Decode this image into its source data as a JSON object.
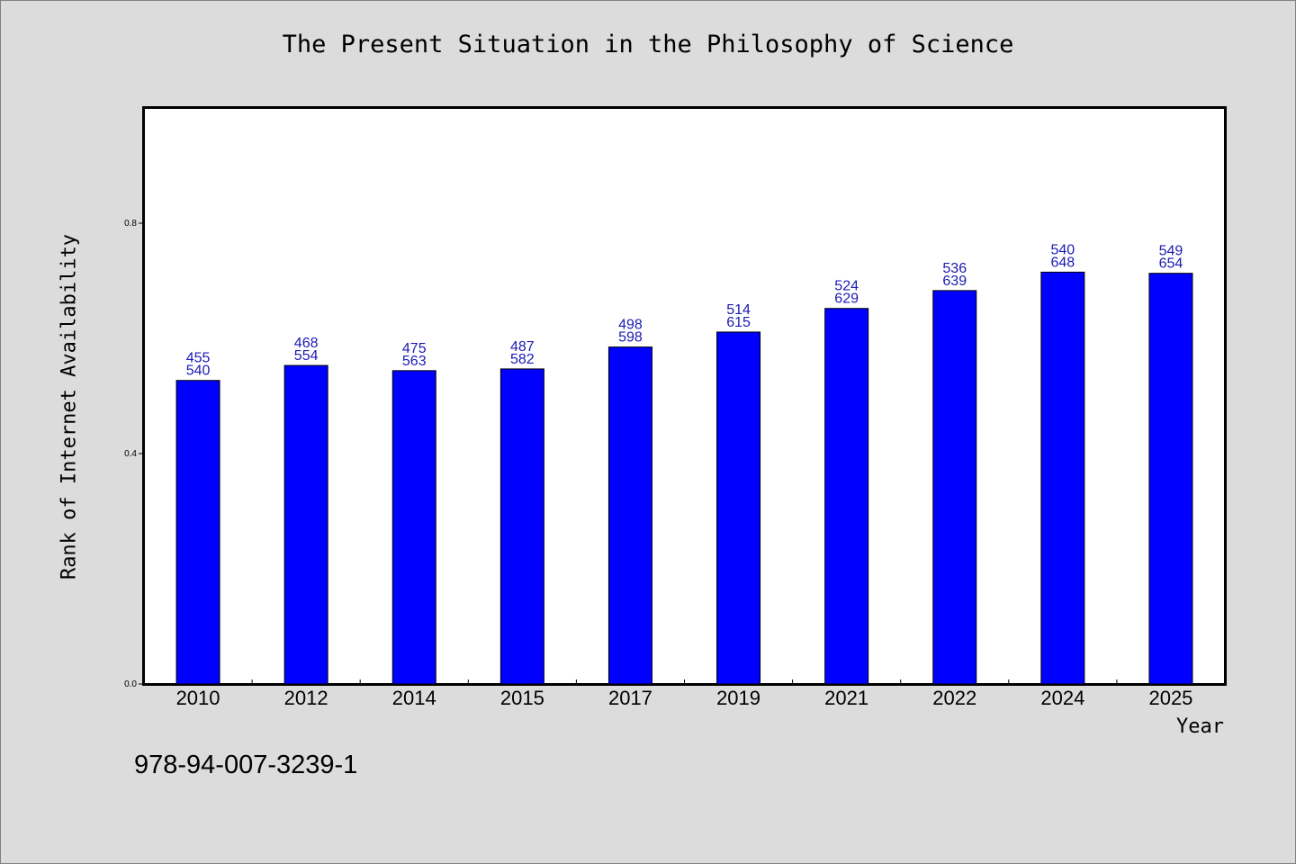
{
  "chart_data": {
    "type": "bar",
    "title": "The Present Situation in the Philosophy of Science",
    "xlabel": "Year",
    "ylabel": "Rank of Internet Availability",
    "categories": [
      "2010",
      "2012",
      "2014",
      "2015",
      "2017",
      "2019",
      "2021",
      "2022",
      "2024",
      "2025"
    ],
    "values": [
      0.527,
      0.553,
      0.544,
      0.547,
      0.585,
      0.611,
      0.652,
      0.683,
      0.715,
      0.713
    ],
    "labels_top": [
      "455",
      "468",
      "475",
      "487",
      "498",
      "514",
      "524",
      "536",
      "540",
      "549"
    ],
    "labels_bottom": [
      "540",
      "554",
      "563",
      "582",
      "598",
      "615",
      "629",
      "639",
      "648",
      "654"
    ],
    "yticks": [
      "0.0",
      "0.4",
      "0.8"
    ],
    "ytick_values": [
      0.0,
      0.4,
      0.8
    ],
    "ylim": [
      0,
      1.0
    ],
    "grid": false,
    "bar_color": "#0000ff",
    "label_color": "#1a1ab4"
  },
  "footer": {
    "isbn": "978-94-007-3239-1"
  }
}
